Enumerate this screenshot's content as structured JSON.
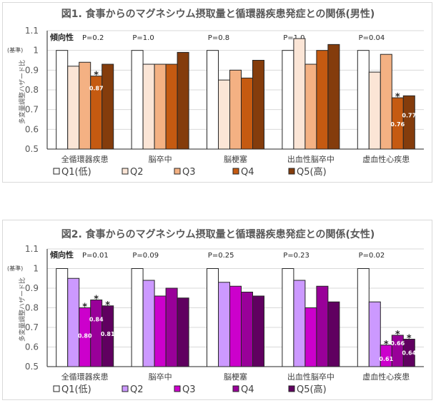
{
  "chart_data": [
    {
      "type": "bar",
      "title": "図1. 食事からのマグネシウム摂取量と循環器疾患発症との関係(男性)",
      "ylabel": "多変量調整ハザード比",
      "ylim": [
        0.5,
        1.1
      ],
      "yticks": [
        "0.5",
        "0.6",
        "0.7",
        "0.8",
        "0.9",
        "1",
        "1.1"
      ],
      "reference_label": "(基準)",
      "trend_label": "傾向性",
      "grid": true,
      "legend_position": "bottom",
      "categories": [
        "全循環器疾患",
        "脳卒中",
        "脳梗塞",
        "出血性脳卒中",
        "虚血性心疾患"
      ],
      "p_values": [
        "P=0.2",
        "P=1.0",
        "P=0.8",
        "P=1.0",
        "P=0.04"
      ],
      "series": [
        {
          "name": "Q1(低)",
          "color": "#ffffff",
          "values": [
            1.0,
            1.0,
            1.0,
            1.0,
            1.0
          ]
        },
        {
          "name": "Q2",
          "color": "#fbe5d6",
          "values": [
            0.92,
            0.93,
            0.85,
            1.06,
            0.89
          ]
        },
        {
          "name": "Q3",
          "color": "#f4b183",
          "values": [
            0.94,
            0.93,
            0.9,
            0.93,
            0.98
          ]
        },
        {
          "name": "Q4",
          "color": "#c55a11",
          "values": [
            0.87,
            0.93,
            0.86,
            1.0,
            0.76
          ]
        },
        {
          "name": "Q5(高)",
          "color": "#843c0c",
          "values": [
            0.93,
            0.99,
            0.95,
            1.03,
            0.77
          ]
        }
      ],
      "annotations": [
        {
          "category": 0,
          "series": 3,
          "star": "*",
          "label": "0.87"
        },
        {
          "category": 4,
          "series": 3,
          "star": "*",
          "label": "0.76"
        },
        {
          "category": 4,
          "series": 4,
          "star": "",
          "label": "0.77"
        }
      ]
    },
    {
      "type": "bar",
      "title": "図2. 食事からのマグネシウム摂取量と循環器疾患発症との関係(女性)",
      "ylabel": "多変量調整ハザード比",
      "ylim": [
        0.5,
        1.1
      ],
      "yticks": [
        "0.5",
        "0.6",
        "0.7",
        "0.8",
        "0.9",
        "1",
        "1.1"
      ],
      "reference_label": "(基準)",
      "trend_label": "傾向性",
      "grid": true,
      "legend_position": "bottom",
      "categories": [
        "全循環器疾患",
        "脳卒中",
        "脳梗塞",
        "出血性脳卒中",
        "虚血性心疾患"
      ],
      "p_values": [
        "P=0.01",
        "P=0.09",
        "P=0.25",
        "P=0.23",
        "P=0.02"
      ],
      "series": [
        {
          "name": "Q1(低)",
          "color": "#ffffff",
          "values": [
            1.0,
            1.0,
            1.0,
            1.0,
            1.0
          ]
        },
        {
          "name": "Q2",
          "color": "#cc99ff",
          "values": [
            0.95,
            0.94,
            0.93,
            0.94,
            0.83
          ]
        },
        {
          "name": "Q3",
          "color": "#cc00cc",
          "values": [
            0.8,
            0.86,
            0.91,
            0.8,
            0.61
          ]
        },
        {
          "name": "Q4",
          "color": "#990099",
          "values": [
            0.84,
            0.9,
            0.88,
            0.91,
            0.66
          ]
        },
        {
          "name": "Q5(高)",
          "color": "#600060",
          "values": [
            0.81,
            0.85,
            0.86,
            0.83,
            0.64
          ]
        }
      ],
      "annotations": [
        {
          "category": 0,
          "series": 2,
          "star": "*",
          "label": "0.80"
        },
        {
          "category": 0,
          "series": 3,
          "star": "*",
          "label": "0.84"
        },
        {
          "category": 0,
          "series": 4,
          "star": "*",
          "label": "0.81"
        },
        {
          "category": 4,
          "series": 2,
          "star": "*",
          "label": "0.61"
        },
        {
          "category": 4,
          "series": 3,
          "star": "*",
          "label": "0.66"
        },
        {
          "category": 4,
          "series": 4,
          "star": "*",
          "label": "0.64"
        }
      ]
    }
  ]
}
